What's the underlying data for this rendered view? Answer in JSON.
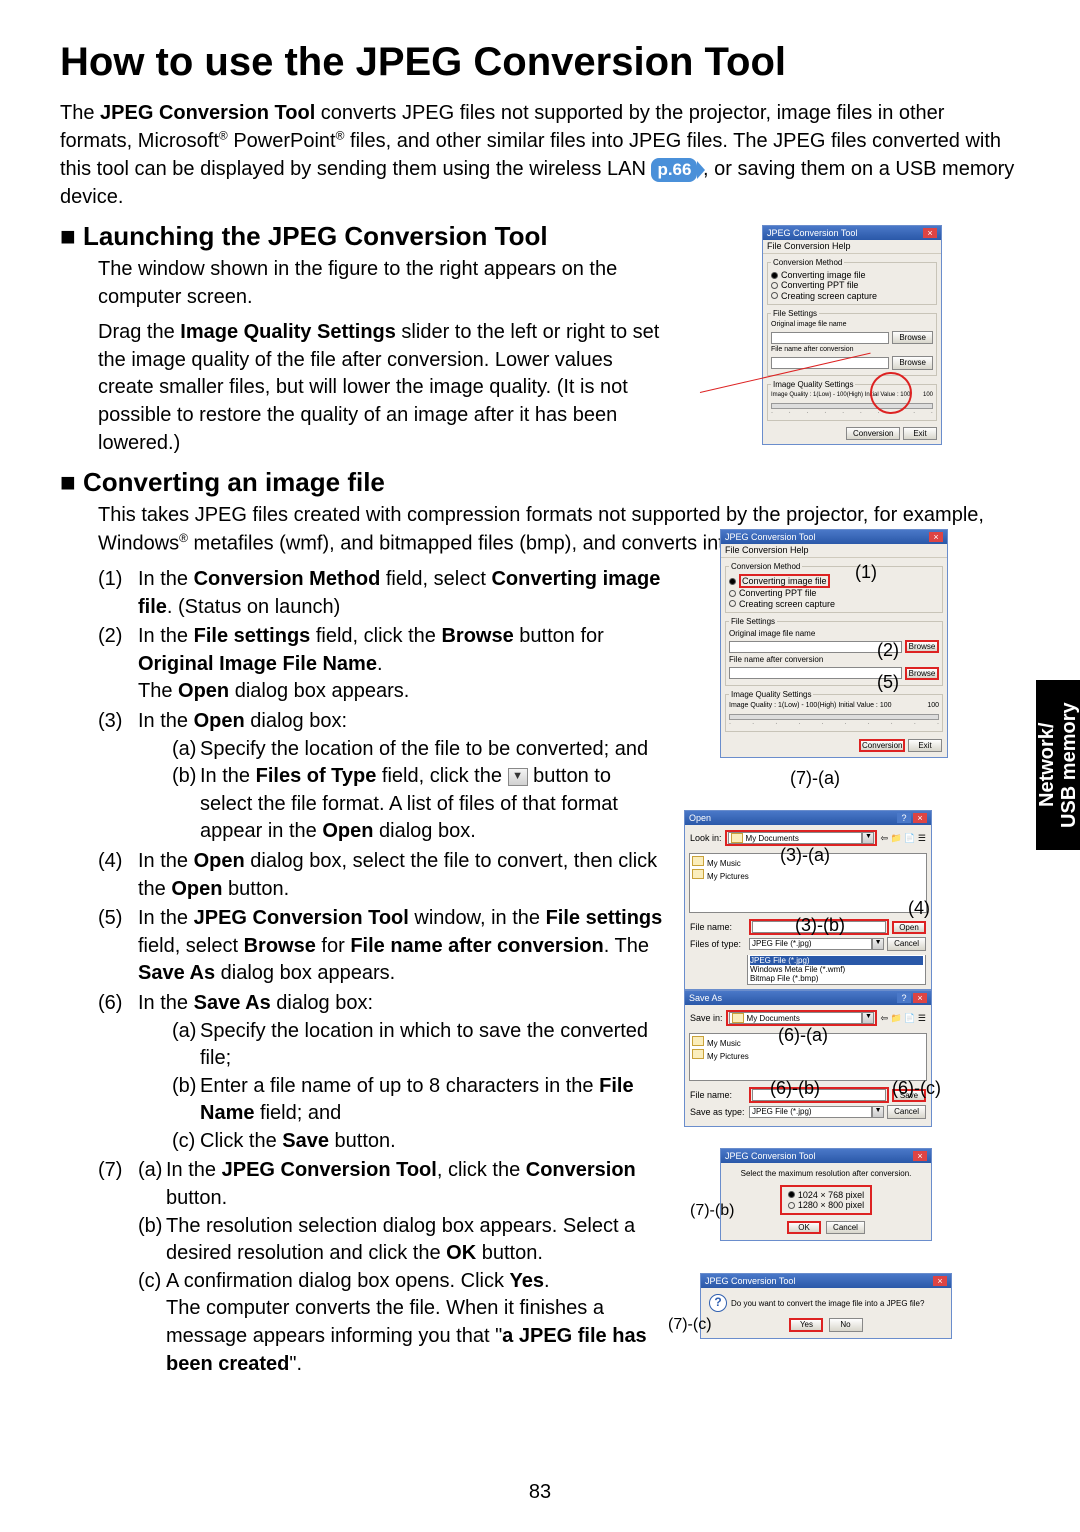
{
  "page": {
    "number": "83"
  },
  "tab": {
    "text": "Network/\nUSB memory"
  },
  "title": "How to use the JPEG Conversion Tool",
  "intro_parts": {
    "p1a": "The ",
    "p1b": "JPEG Conversion Tool",
    "p1c": " converts JPEG files not supported by the projector, image files in other formats, Microsoft",
    "reg1": "®",
    "p1d": " PowerPoint",
    "reg2": "®",
    "p1e": " files, and other similar files into JPEG files. The JPEG files converted with this tool can be displayed by sending them using the wireless LAN ",
    "pref": "p.66",
    "p1f": ", or saving them on a USB memory device."
  },
  "sec1": {
    "heading": "Launching the JPEG Conversion Tool",
    "p1": "The window shown in the figure to the right appears on the computer screen.",
    "p2a": "Drag the ",
    "p2b": "Image Quality Settings",
    "p2c": " slider to the left or right to set the image quality of the file after conversion. Lower values create smaller files, but will lower the image quality. (It is not possible to restore the quality of an image after it has been lowered.)"
  },
  "sec2": {
    "heading": "Converting an image file",
    "intro_a": "This takes JPEG files created with compression formats not supported by the projector, for example, Windows",
    "reg": "®",
    "intro_b": " metafiles (wmf), and bitmapped files (bmp), and converts into JPEG files."
  },
  "steps": [
    {
      "n": "(1)",
      "body_parts": [
        "In the ",
        "Conversion Method",
        " field, select ",
        "Converting image file",
        ". (Status on launch)"
      ]
    },
    {
      "n": "(2)",
      "body_parts": [
        "In the ",
        "File settings",
        " field, click the ",
        "Browse",
        " button for ",
        "Original Image File Name",
        ".\nThe ",
        "Open",
        " dialog box appears."
      ]
    },
    {
      "n": "(3)",
      "body_parts": [
        "In the ",
        "Open",
        " dialog box:"
      ],
      "sub": [
        {
          "k": "(a)",
          "t": "Specify the location of the file to be converted; and"
        },
        {
          "k": "(b)",
          "t_parts": [
            "In the ",
            "Files of Type",
            " field, click the  ",
            " button to select the file format. A list of files of that format appear in the ",
            "Open",
            " dialog box."
          ]
        }
      ]
    },
    {
      "n": "(4)",
      "body_parts": [
        "In the ",
        "Open",
        " dialog box, select the file to convert, then click the ",
        "Open",
        " button."
      ]
    },
    {
      "n": "(5)",
      "body_parts": [
        "In the ",
        "JPEG Conversion Tool",
        " window, in the ",
        "File settings",
        " field, select ",
        "Browse",
        " for ",
        "File name after conversion",
        ". The ",
        "Save As",
        " dialog box appears."
      ]
    },
    {
      "n": "(6)",
      "body_parts": [
        "In the ",
        "Save As",
        " dialog box:"
      ],
      "sub": [
        {
          "k": "(a)",
          "t": "Specify the location in which to save the converted file;"
        },
        {
          "k": "(b)",
          "t_parts": [
            "Enter a file name of up to 8 characters in the ",
            "File Name",
            " field; and"
          ]
        },
        {
          "k": "(c)",
          "t_parts": [
            "Click the ",
            "Save",
            " button."
          ]
        }
      ]
    },
    {
      "n": "(7)",
      "sub": [
        {
          "k": "(a)",
          "t_parts": [
            "In the ",
            "JPEG Conversion Tool",
            ", click the ",
            "Conversion",
            " button."
          ]
        },
        {
          "k": "(b)",
          "t_parts": [
            "The resolution selection dialog box appears. Select a desired resolution and click the ",
            "OK",
            " button."
          ]
        },
        {
          "k": "(c)",
          "t_parts": [
            "A confirmation dialog box opens. Click ",
            "Yes",
            ".\nThe computer converts the file. When it finishes a message  appears informing you that \"",
            "a JPEG file has been created",
            "\"."
          ]
        }
      ]
    }
  ],
  "dlg": {
    "jpeg_tool_title": "JPEG Conversion Tool",
    "menu": "File  Conversion  Help",
    "conv_method_legend": "Conversion Method",
    "r1": "Converting image file",
    "r2": "Converting PPT file",
    "r3": "Creating screen capture",
    "file_settings_legend": "File Settings",
    "orig_label": "Original image file name",
    "after_label": "File name after conversion",
    "browse": "Browse",
    "iqs_legend": "Image Quality Settings",
    "iqs_text": "Image Quality : 1(Low) - 100(High) Initial Value : 100",
    "iqs_right": "100",
    "conversion_btn": "Conversion",
    "exit_btn": "Exit",
    "open_title": "Open",
    "save_title": "Save As",
    "look_in": "Look in:",
    "save_in": "Save in:",
    "mydocs": "My Documents",
    "folders1": "My Music",
    "folders2": "My Pictures",
    "filename_lbl": "File name:",
    "filesoftype_lbl": "Files of type:",
    "saveastype_lbl": "Save as type:",
    "jpeg_filter": "JPEG File (*.jpg)",
    "fmt_list1": "JPEG File (*.jpg)",
    "fmt_list2": "Windows Meta File (*.wmf)",
    "fmt_list3": "Bitmap File (*.bmp)",
    "open_btn": "Open",
    "save_btn": "Save",
    "cancel_btn": "Cancel",
    "ok_btn": "OK",
    "resolution_msg": "Select the maximum resolution after conversion.",
    "res1": "1024 × 768 pixel",
    "res2": "1280 × 800 pixel",
    "confirm_msg": "Do you want to convert the image file into a JPEG file?",
    "yes_btn": "Yes",
    "no_btn": "No"
  },
  "callouts": {
    "c1": "(1)",
    "c2": "(2)",
    "c5": "(5)",
    "c7a": "(7)-(a)",
    "c3a": "(3)-(a)",
    "c3b": "(3)-(b)",
    "c4": "(4)",
    "c6a": "(6)-(a)",
    "c6b": "(6)-(b)",
    "c6c": "(6)-(c)",
    "c7b": "(7)-(b)",
    "c7c": "(7)-(c)"
  },
  "colors": {
    "red": "#d22222",
    "bar": "#3a67b8",
    "page_ref_bg": "#4a90d9"
  }
}
